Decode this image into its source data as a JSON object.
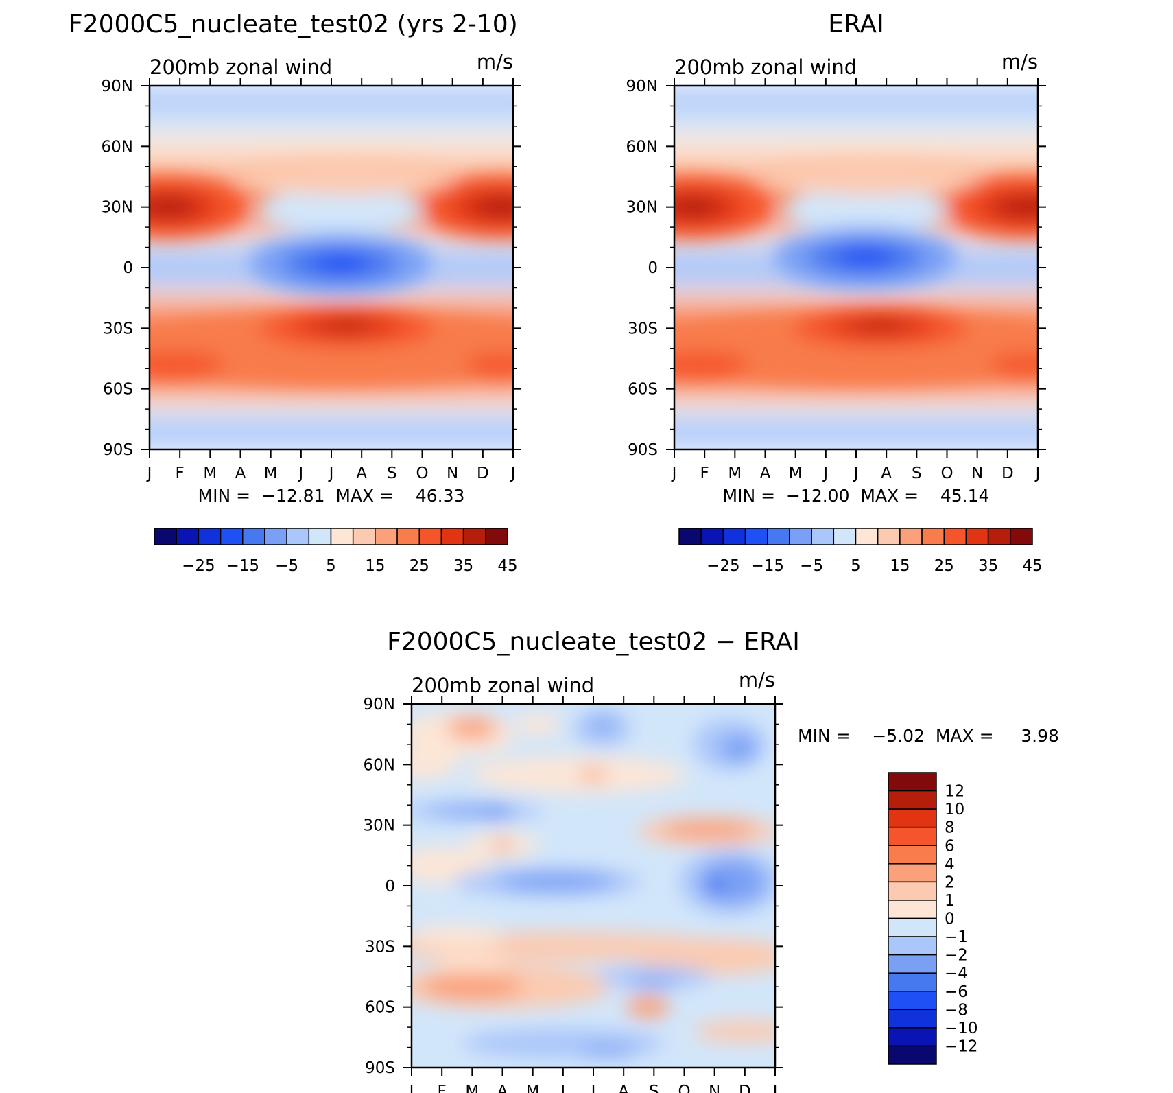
{
  "chart_data": [
    {
      "type": "heatmap",
      "title": "F2000C5_nucleate_test02 (yrs 2-10)",
      "subtitle_left": "200mb zonal wind",
      "subtitle_right": "m/s",
      "x_tick_labels": [
        "J",
        "F",
        "M",
        "A",
        "M",
        "J",
        "J",
        "A",
        "S",
        "O",
        "N",
        "D",
        "J"
      ],
      "y_tick_labels": [
        "90N",
        "60N",
        "30N",
        "0",
        "30S",
        "60S",
        "90S"
      ],
      "y_values": [
        90,
        60,
        30,
        0,
        -30,
        -60,
        -90
      ],
      "min_max_text": "MIN =  −12.81  MAX =    46.33",
      "min": -12.81,
      "max": 46.33,
      "colorbar_labels": [
        "−25",
        "−15",
        "−5",
        "5",
        "15",
        "25",
        "35",
        "45"
      ],
      "jet_centers": [
        {
          "month": 0.3,
          "lat": 30,
          "value": 46
        },
        {
          "month": 11.8,
          "lat": 30,
          "value": 44
        },
        {
          "month": 6.5,
          "lat": -30,
          "value": 44
        },
        {
          "month": 6.2,
          "lat": 0,
          "value": -12
        }
      ]
    },
    {
      "type": "heatmap",
      "title": "ERAI",
      "subtitle_left": "200mb zonal wind",
      "subtitle_right": "m/s",
      "x_tick_labels": [
        "J",
        "F",
        "M",
        "A",
        "M",
        "J",
        "J",
        "A",
        "S",
        "O",
        "N",
        "D",
        "J"
      ],
      "y_tick_labels": [
        "90N",
        "60N",
        "30N",
        "0",
        "30S",
        "60S",
        "90S"
      ],
      "y_values": [
        90,
        60,
        30,
        0,
        -30,
        -60,
        -90
      ],
      "min_max_text": "MIN =  −12.00  MAX =    45.14",
      "min": -12.0,
      "max": 45.14,
      "colorbar_labels": [
        "−25",
        "−15",
        "−5",
        "5",
        "15",
        "25",
        "35",
        "45"
      ],
      "jet_centers": [
        {
          "month": 0.3,
          "lat": 30,
          "value": 45
        },
        {
          "month": 11.8,
          "lat": 30,
          "value": 43
        },
        {
          "month": 6.8,
          "lat": -30,
          "value": 43
        },
        {
          "month": 7.0,
          "lat": 5,
          "value": -12
        }
      ]
    },
    {
      "type": "heatmap",
      "title": "F2000C5_nucleate_test02 − ERAI",
      "subtitle_left": "200mb zonal wind",
      "subtitle_right": "m/s",
      "x_tick_labels": [
        "J",
        "F",
        "M",
        "A",
        "M",
        "J",
        "J",
        "A",
        "S",
        "O",
        "N",
        "D",
        "J"
      ],
      "y_tick_labels": [
        "90N",
        "60N",
        "30N",
        "0",
        "30S",
        "60S",
        "90S"
      ],
      "y_values": [
        90,
        60,
        30,
        0,
        -30,
        -60,
        -90
      ],
      "min_max_text": "MIN =    −5.02  MAX =     3.98",
      "min": -5.02,
      "max": 3.98,
      "colorbar_labels": [
        "12",
        "10",
        "8",
        "6",
        "4",
        "2",
        "1",
        "0",
        "−1",
        "−2",
        "−4",
        "−6",
        "−8",
        "−10",
        "−12"
      ]
    }
  ],
  "colors": {
    "abs_scale": [
      "#08086e",
      "#0a14b4",
      "#0f32dc",
      "#1e50f5",
      "#4678f0",
      "#7aa0f5",
      "#aac6fa",
      "#d2e6fa",
      "#fde6d6",
      "#fccab0",
      "#faa07a",
      "#f87c4c",
      "#f5552a",
      "#e03412",
      "#b41e0a",
      "#820a0a"
    ],
    "diff_scale": [
      "#08086e",
      "#0a14b4",
      "#0f32dc",
      "#1e50f5",
      "#4678f0",
      "#7aa0f5",
      "#aac6fa",
      "#d2e6fa",
      "#fde6d6",
      "#fccab0",
      "#faa07a",
      "#f87c4c",
      "#f5552a",
      "#e03412",
      "#b41e0a",
      "#820a0a"
    ]
  }
}
